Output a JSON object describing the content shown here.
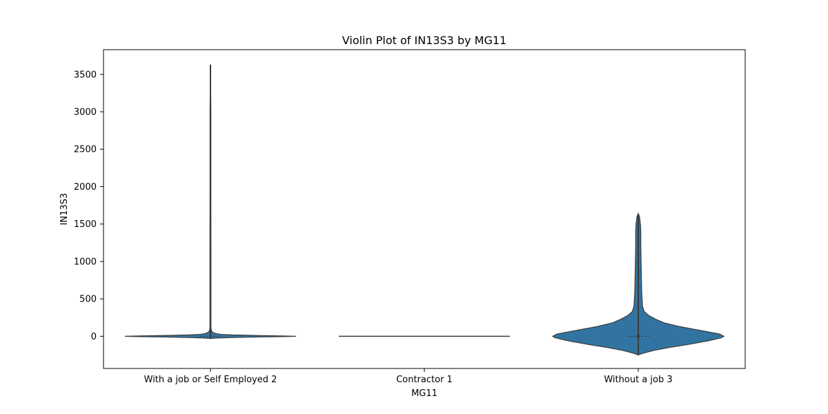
{
  "chart_data": {
    "type": "violin",
    "title": "Violin Plot of IN13S3 by MG11",
    "xlabel": "MG11",
    "ylabel": "IN13S3",
    "categories": [
      "With a job or Self Employed 2",
      "Contractor 1",
      "Without a job 3"
    ],
    "ylim": [
      -430,
      3830
    ],
    "yticks": [
      0,
      500,
      1000,
      1500,
      2000,
      2500,
      3000,
      3500
    ],
    "grid": false,
    "violin_color": "#3274a1",
    "edge_color": "#3a3a3a",
    "violins": [
      {
        "category": "With a job or Self Employed 2",
        "min": -30,
        "max": 3630,
        "median": 0,
        "q1": 0,
        "q3": 10,
        "profile": [
          [
            -30,
            0.0
          ],
          [
            -25,
            0.06
          ],
          [
            -18,
            0.22
          ],
          [
            -10,
            0.55
          ],
          [
            -4,
            0.88
          ],
          [
            0,
            1.0
          ],
          [
            4,
            0.88
          ],
          [
            10,
            0.55
          ],
          [
            18,
            0.25
          ],
          [
            26,
            0.12
          ],
          [
            35,
            0.07
          ],
          [
            45,
            0.04
          ],
          [
            60,
            0.02
          ],
          [
            80,
            0.01
          ],
          [
            120,
            0.006
          ],
          [
            300,
            0.006
          ],
          [
            1000,
            0.006
          ],
          [
            2000,
            0.005
          ],
          [
            3000,
            0.005
          ],
          [
            3630,
            0.0
          ]
        ]
      },
      {
        "category": "Contractor 1",
        "min": 0,
        "max": 0,
        "median": 0,
        "q1": 0,
        "q3": 0,
        "profile": []
      },
      {
        "category": "Without a job 3",
        "min": -250,
        "max": 1640,
        "median": 0,
        "q1": -20,
        "q3": 20,
        "profile": [
          [
            -250,
            0.0
          ],
          [
            -225,
            0.06
          ],
          [
            -190,
            0.18
          ],
          [
            -150,
            0.36
          ],
          [
            -110,
            0.58
          ],
          [
            -60,
            0.82
          ],
          [
            -20,
            0.97
          ],
          [
            0,
            1.0
          ],
          [
            30,
            0.95
          ],
          [
            80,
            0.72
          ],
          [
            130,
            0.48
          ],
          [
            180,
            0.3
          ],
          [
            230,
            0.2
          ],
          [
            280,
            0.12
          ],
          [
            330,
            0.07
          ],
          [
            400,
            0.05
          ],
          [
            600,
            0.04
          ],
          [
            900,
            0.035
          ],
          [
            1200,
            0.03
          ],
          [
            1400,
            0.03
          ],
          [
            1500,
            0.025
          ],
          [
            1600,
            0.015
          ],
          [
            1640,
            0.0
          ]
        ]
      }
    ]
  }
}
